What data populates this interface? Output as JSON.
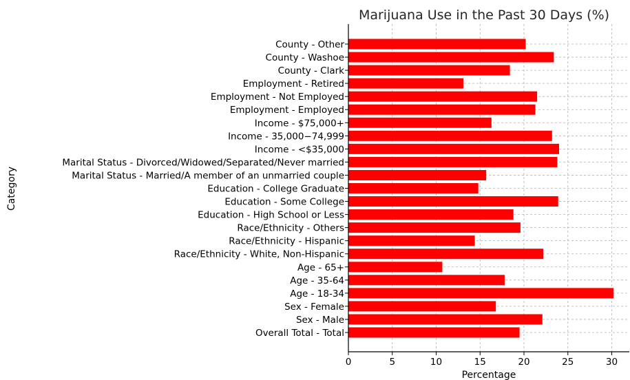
{
  "chart_data": {
    "type": "bar",
    "orientation": "horizontal",
    "title": "Marijuana Use in the Past 30 Days (%)",
    "xlabel": "Percentage",
    "ylabel": "Category",
    "xlim": [
      0,
      32
    ],
    "xticks": [
      "0",
      "5",
      "10",
      "15",
      "20",
      "25",
      "30"
    ],
    "grid": true,
    "bar_color": "#ff0000",
    "categories": [
      "Overall Total - Total",
      "Sex - Male",
      "Sex - Female",
      "Age - 18-34",
      "Age - 35-64",
      "Age - 65+",
      "Race/Ethnicity - White, Non-Hispanic",
      "Race/Ethnicity - Hispanic",
      "Race/Ethnicity - Others",
      "Education - High School or Less",
      "Education - Some College",
      "Education - College Graduate",
      "Marital Status - Married/A member of an unmarried couple",
      "Marital Status - Divorced/Widowed/Separated/Never married",
      "Income - <$35,000",
      "Income - 35,000−74,999",
      "Income - $75,000+",
      "Employment - Employed",
      "Employment - Not Employed",
      "Employment - Retired",
      "County - Clark",
      "County - Washoe",
      "County - Other"
    ],
    "values": [
      19.5,
      22.1,
      16.8,
      30.2,
      17.8,
      10.7,
      22.2,
      14.4,
      19.6,
      18.8,
      23.9,
      14.8,
      15.7,
      23.8,
      24.0,
      23.2,
      16.3,
      21.3,
      21.5,
      13.1,
      18.4,
      23.4,
      20.2
    ]
  }
}
